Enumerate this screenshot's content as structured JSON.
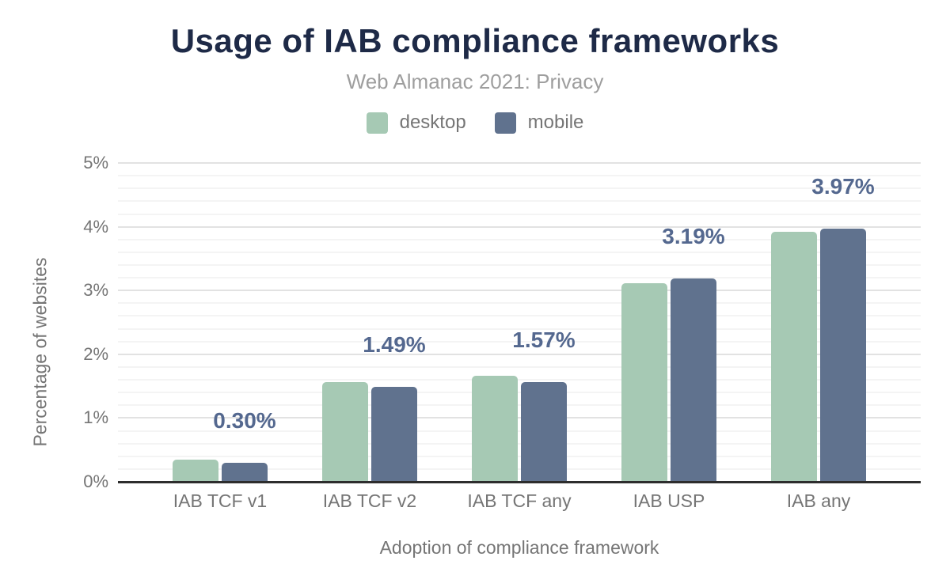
{
  "chart_data": {
    "type": "bar",
    "title": "Usage of IAB compliance frameworks",
    "subtitle": "Web Almanac 2021: Privacy",
    "xlabel": "Adoption of compliance framework",
    "ylabel": "Percentage of websites",
    "categories": [
      "IAB TCF v1",
      "IAB TCF v2",
      "IAB TCF any",
      "IAB USP",
      "IAB any"
    ],
    "series": [
      {
        "name": "desktop",
        "color": "#a6c9b4",
        "values": [
          0.35,
          1.56,
          1.66,
          3.12,
          3.92
        ]
      },
      {
        "name": "mobile",
        "color": "#60728e",
        "values": [
          0.3,
          1.49,
          1.57,
          3.19,
          3.97
        ]
      }
    ],
    "annotations": [
      "0.30%",
      "1.49%",
      "1.57%",
      "3.19%",
      "3.97%"
    ],
    "annotated_series": "mobile",
    "yticks": [
      "0%",
      "1%",
      "2%",
      "3%",
      "4%",
      "5%"
    ],
    "ylim": [
      0,
      5
    ],
    "minor_grid_step": 0.2,
    "legend_position": "top",
    "grid": true
  },
  "style": {
    "title_color": "#1e2a47",
    "subtitle_color": "#9e9e9e",
    "axis_text_color": "#757575",
    "annotation_color": "#54688f",
    "axis_line_color": "#2d2d2d",
    "grid_major_color": "#e2e2e2",
    "grid_minor_color": "#f4f4f4",
    "background_color": "#ffffff"
  }
}
